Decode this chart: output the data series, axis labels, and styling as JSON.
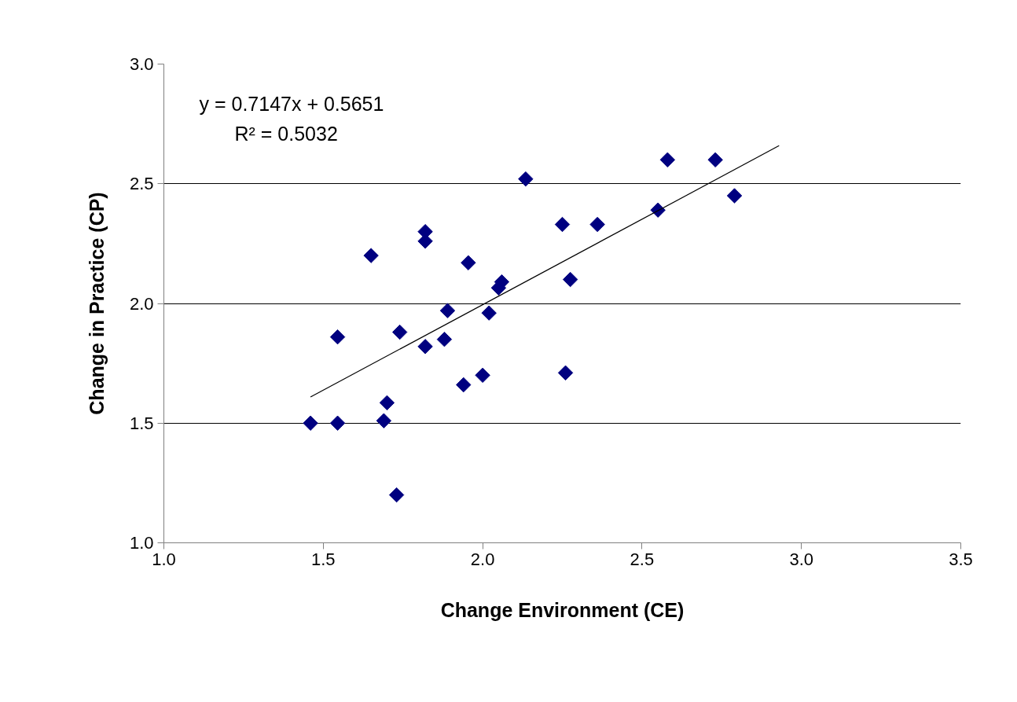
{
  "chart_data": {
    "type": "scatter",
    "xlabel": "Change Environment (CE)",
    "ylabel": "Change in Practice (CP)",
    "annotations": [
      "y = 0.7147x + 0.5651",
      "R² = 0.5032"
    ],
    "xlim": [
      1.0,
      3.5
    ],
    "xticks": [
      {
        "value": 1.0,
        "label": "1.0"
      },
      {
        "value": 1.5,
        "label": "1.5"
      },
      {
        "value": 2.0,
        "label": "2.0"
      },
      {
        "value": 2.5,
        "label": "2.5"
      },
      {
        "value": 3.0,
        "label": "3.0"
      },
      {
        "value": 3.5,
        "label": "3.5"
      }
    ],
    "ylim": [
      1.0,
      3.0
    ],
    "yticks": [
      {
        "value": 1.0,
        "label": "1.0"
      },
      {
        "value": 1.5,
        "label": "1.5"
      },
      {
        "value": 2.0,
        "label": "2.0"
      },
      {
        "value": 2.5,
        "label": "2.5"
      },
      {
        "value": 3.0,
        "label": "3.0"
      }
    ],
    "grid": "y",
    "marker": "diamond",
    "series": [
      {
        "color": "#000080",
        "x": [
          1.46,
          1.545,
          1.545,
          1.65,
          1.69,
          1.7,
          1.73,
          1.74,
          1.82,
          1.82,
          1.82,
          1.88,
          1.89,
          1.955,
          1.94,
          2.0,
          2.02,
          2.05,
          2.06,
          2.135,
          2.25,
          2.26,
          2.275,
          2.36,
          2.55,
          2.58,
          2.73,
          2.79
        ],
        "values": [
          1.5,
          1.5,
          1.86,
          2.2,
          1.51,
          1.585,
          1.2,
          1.88,
          2.3,
          2.26,
          1.82,
          1.85,
          1.97,
          2.17,
          1.66,
          1.7,
          1.96,
          2.065,
          2.09,
          2.52,
          2.33,
          1.71,
          2.1,
          2.33,
          2.39,
          2.6,
          2.6,
          2.45
        ]
      },
      {
        "type": "line",
        "marker": "none",
        "color": "#000000",
        "x": [
          1.46,
          2.93
        ],
        "values": [
          1.609,
          2.659
        ]
      }
    ]
  }
}
